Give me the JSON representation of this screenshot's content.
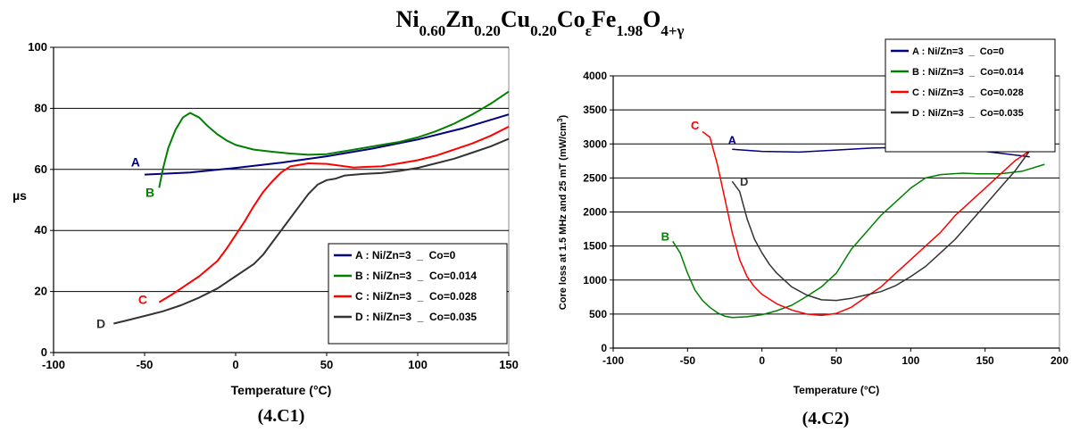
{
  "figure": {
    "title_parts": [
      {
        "t": "Ni",
        "s": "n"
      },
      {
        "t": "0.60",
        "s": "sub"
      },
      {
        "t": "Zn",
        "s": "n"
      },
      {
        "t": "0.20",
        "s": "sub"
      },
      {
        "t": "Cu",
        "s": "n"
      },
      {
        "t": "0.20",
        "s": "sub"
      },
      {
        "t": "Co",
        "s": "n"
      },
      {
        "t": "ε",
        "s": "sub"
      },
      {
        "t": "Fe",
        "s": "n"
      },
      {
        "t": "1.98",
        "s": "sub"
      },
      {
        "t": "O",
        "s": "n"
      },
      {
        "t": "4+γ",
        "s": "sub"
      }
    ]
  },
  "chart_data": [
    {
      "id": "left",
      "type": "line",
      "caption": "(4.C1)",
      "xlabel": "Temperature (°C)",
      "ylabel": "µs",
      "xlim": [
        -100,
        150
      ],
      "ylim": [
        0,
        100
      ],
      "xticks": [
        -100,
        -50,
        0,
        50,
        100,
        150
      ],
      "yticks": [
        0,
        20,
        40,
        60,
        80,
        100
      ],
      "grid": "horizontal",
      "legend_placement": "bottom-right",
      "series": [
        {
          "name": "A : Ni/Zn=3  _  Co=0",
          "color": "#000080",
          "label": "A",
          "label_at": [
            -55,
            61
          ],
          "points": [
            [
              -50,
              58.3
            ],
            [
              -25,
              59.0
            ],
            [
              0,
              60.5
            ],
            [
              25,
              62.2
            ],
            [
              50,
              64.3
            ],
            [
              75,
              66.8
            ],
            [
              100,
              69.8
            ],
            [
              125,
              73.5
            ],
            [
              150,
              78.0
            ]
          ]
        },
        {
          "name": "B : Ni/Zn=3  _  Co=0.014",
          "color": "#008000",
          "label": "B",
          "label_at": [
            -47,
            51
          ],
          "points": [
            [
              -42,
              54
            ],
            [
              -40,
              60
            ],
            [
              -37,
              67
            ],
            [
              -33,
              73
            ],
            [
              -29,
              77
            ],
            [
              -25,
              78.5
            ],
            [
              -20,
              77
            ],
            [
              -15,
              74
            ],
            [
              -10,
              71.5
            ],
            [
              -5,
              69.5
            ],
            [
              0,
              68
            ],
            [
              10,
              66.5
            ],
            [
              20,
              65.8
            ],
            [
              30,
              65.2
            ],
            [
              40,
              64.8
            ],
            [
              50,
              65
            ],
            [
              60,
              66
            ],
            [
              70,
              67
            ],
            [
              80,
              68
            ],
            [
              90,
              69
            ],
            [
              100,
              70.5
            ],
            [
              110,
              72.5
            ],
            [
              120,
              75
            ],
            [
              130,
              78
            ],
            [
              140,
              81.5
            ],
            [
              150,
              85.5
            ]
          ]
        },
        {
          "name": "C : Ni/Zn=3  _  Co=0.028",
          "color": "#ff0000",
          "label": "C",
          "label_at": [
            -51,
            16
          ],
          "points": [
            [
              -42,
              16.5
            ],
            [
              -35,
              19
            ],
            [
              -30,
              21
            ],
            [
              -20,
              25
            ],
            [
              -10,
              30
            ],
            [
              -5,
              34
            ],
            [
              0,
              38.5
            ],
            [
              5,
              43
            ],
            [
              10,
              48
            ],
            [
              15,
              52.5
            ],
            [
              20,
              56
            ],
            [
              25,
              59
            ],
            [
              30,
              61
            ],
            [
              40,
              62
            ],
            [
              50,
              61.8
            ],
            [
              60,
              61
            ],
            [
              65,
              60.6
            ],
            [
              70,
              60.8
            ],
            [
              80,
              61
            ],
            [
              90,
              62
            ],
            [
              100,
              63
            ],
            [
              110,
              64.5
            ],
            [
              120,
              66.5
            ],
            [
              130,
              68.5
            ],
            [
              140,
              71
            ],
            [
              150,
              74
            ]
          ]
        },
        {
          "name": "D : Ni/Zn=3  _  Co=0.035",
          "color": "#333333",
          "label": "D",
          "label_at": [
            -74,
            8
          ],
          "points": [
            [
              -67,
              9.5
            ],
            [
              -60,
              10.5
            ],
            [
              -50,
              12
            ],
            [
              -40,
              13.5
            ],
            [
              -30,
              15.5
            ],
            [
              -20,
              18
            ],
            [
              -10,
              21
            ],
            [
              0,
              25
            ],
            [
              10,
              29
            ],
            [
              15,
              32
            ],
            [
              20,
              36
            ],
            [
              25,
              40
            ],
            [
              30,
              44
            ],
            [
              35,
              48
            ],
            [
              40,
              52
            ],
            [
              45,
              55
            ],
            [
              50,
              56.5
            ],
            [
              55,
              57
            ],
            [
              60,
              58
            ],
            [
              70,
              58.5
            ],
            [
              80,
              58.8
            ],
            [
              90,
              59.5
            ],
            [
              100,
              60.5
            ],
            [
              110,
              62
            ],
            [
              120,
              63.5
            ],
            [
              130,
              65.5
            ],
            [
              140,
              67.5
            ],
            [
              150,
              70
            ]
          ]
        }
      ]
    },
    {
      "id": "right",
      "type": "line",
      "caption": "(4.C2)",
      "xlabel": "Temperature (°C)",
      "ylabel_parts": [
        {
          "t": "Core loss at 1.5 MHz and 25 mT (mW/cm",
          "s": "n"
        },
        {
          "t": "3",
          "s": "sup"
        },
        {
          "t": ")",
          "s": "n"
        }
      ],
      "xlim": [
        -100,
        200
      ],
      "ylim": [
        0,
        4000
      ],
      "xticks": [
        -100,
        -50,
        0,
        50,
        100,
        150,
        200
      ],
      "yticks": [
        0,
        500,
        1000,
        1500,
        2000,
        2500,
        3000,
        3500,
        4000
      ],
      "grid": "horizontal",
      "legend_placement": "top-right",
      "series": [
        {
          "name": "A : Ni/Zn=3  _  Co=0",
          "color": "#000080",
          "label": "A",
          "label_at": [
            -20,
            3000
          ],
          "points": [
            [
              -20,
              2920
            ],
            [
              0,
              2890
            ],
            [
              25,
              2880
            ],
            [
              50,
              2910
            ],
            [
              75,
              2940
            ],
            [
              100,
              2950
            ],
            [
              125,
              2940
            ],
            [
              150,
              2890
            ],
            [
              180,
              2810
            ]
          ]
        },
        {
          "name": "B : Ni/Zn=3  _  Co=0.014",
          "color": "#008000",
          "label": "B",
          "label_at": [
            -65,
            1580
          ],
          "points": [
            [
              -60,
              1570
            ],
            [
              -55,
              1400
            ],
            [
              -50,
              1100
            ],
            [
              -45,
              850
            ],
            [
              -40,
              700
            ],
            [
              -35,
              600
            ],
            [
              -30,
              520
            ],
            [
              -25,
              470
            ],
            [
              -20,
              450
            ],
            [
              -10,
              460
            ],
            [
              0,
              490
            ],
            [
              10,
              550
            ],
            [
              20,
              630
            ],
            [
              30,
              760
            ],
            [
              40,
              900
            ],
            [
              50,
              1100
            ],
            [
              60,
              1450
            ],
            [
              70,
              1700
            ],
            [
              80,
              1950
            ],
            [
              90,
              2150
            ],
            [
              100,
              2350
            ],
            [
              110,
              2500
            ],
            [
              120,
              2550
            ],
            [
              135,
              2570
            ],
            [
              145,
              2560
            ],
            [
              160,
              2560
            ],
            [
              175,
              2600
            ],
            [
              190,
              2700
            ]
          ]
        },
        {
          "name": "C : Ni/Zn=3  _  Co=0.028",
          "color": "#ff0000",
          "label": "C",
          "label_at": [
            -45,
            3210
          ],
          "points": [
            [
              -40,
              3180
            ],
            [
              -35,
              3100
            ],
            [
              -30,
              2700
            ],
            [
              -25,
              2200
            ],
            [
              -20,
              1700
            ],
            [
              -15,
              1300
            ],
            [
              -10,
              1050
            ],
            [
              -5,
              900
            ],
            [
              0,
              790
            ],
            [
              10,
              650
            ],
            [
              20,
              560
            ],
            [
              30,
              500
            ],
            [
              40,
              480
            ],
            [
              50,
              510
            ],
            [
              60,
              600
            ],
            [
              70,
              750
            ],
            [
              80,
              900
            ],
            [
              90,
              1100
            ],
            [
              100,
              1300
            ],
            [
              110,
              1500
            ],
            [
              120,
              1700
            ],
            [
              130,
              1950
            ],
            [
              140,
              2150
            ],
            [
              150,
              2350
            ],
            [
              160,
              2550
            ],
            [
              170,
              2750
            ],
            [
              180,
              2900
            ]
          ]
        },
        {
          "name": "D : Ni/Zn=3  _  Co=0.035",
          "color": "#333333",
          "label": "D",
          "label_at": [
            -12,
            2390
          ],
          "points": [
            [
              -20,
              2450
            ],
            [
              -15,
              2300
            ],
            [
              -10,
              1900
            ],
            [
              -5,
              1600
            ],
            [
              0,
              1400
            ],
            [
              5,
              1230
            ],
            [
              10,
              1100
            ],
            [
              20,
              900
            ],
            [
              30,
              780
            ],
            [
              40,
              710
            ],
            [
              50,
              700
            ],
            [
              60,
              730
            ],
            [
              70,
              780
            ],
            [
              80,
              830
            ],
            [
              90,
              920
            ],
            [
              100,
              1050
            ],
            [
              110,
              1200
            ],
            [
              120,
              1400
            ],
            [
              130,
              1600
            ],
            [
              140,
              1850
            ],
            [
              150,
              2100
            ],
            [
              160,
              2350
            ],
            [
              170,
              2600
            ],
            [
              180,
              2900
            ]
          ]
        }
      ]
    }
  ]
}
